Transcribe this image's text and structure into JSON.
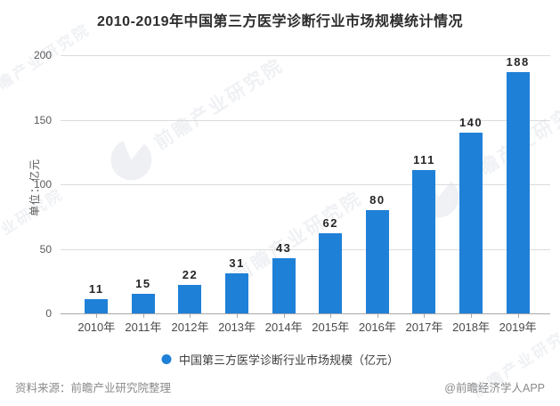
{
  "title": "2010-2019年中国第三方医学诊断行业市场规模统计情况",
  "chart_data": {
    "type": "bar",
    "categories": [
      "2010年",
      "2011年",
      "2012年",
      "2013年",
      "2014年",
      "2015年",
      "2016年",
      "2017年",
      "2018年",
      "2019年"
    ],
    "values": [
      11,
      15,
      22,
      31,
      43,
      62,
      80,
      111,
      140,
      188
    ],
    "title": "2010-2019年中国第三方医学诊断行业市场规模统计情况",
    "xlabel": "",
    "ylabel": "单位：亿元",
    "ylim": [
      0,
      200
    ],
    "yticks": [
      0,
      50,
      100,
      150,
      200
    ],
    "grid": true,
    "legend_position": "bottom",
    "legend_entries": [
      "中国第三方医学诊断行业市场规模（亿元）"
    ],
    "bar_color": "#1f80d8",
    "value_labels_shown": true
  },
  "legend": {
    "label": "中国第三方医学诊断行业市场规模（亿元）",
    "marker_color": "#1f80d8"
  },
  "footer": {
    "source": "资料来源：前瞻产业研究院整理",
    "credit": "@前瞻经济学人APP"
  },
  "watermark": {
    "brand": "前瞻产业研究院",
    "logo": "pie-chart-logo"
  }
}
